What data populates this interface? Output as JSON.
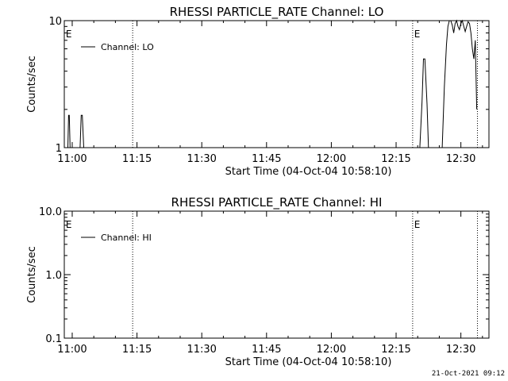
{
  "chart_data": [
    {
      "type": "line",
      "title": "RHESSI PARTICLE_RATE Channel: LO",
      "xlabel": "Start Time (04-Oct-04 10:58:10)",
      "ylabel": "Counts/sec",
      "yscale": "log",
      "ylim": [
        1,
        10
      ],
      "ytick_labels": [
        "1",
        "10"
      ],
      "xlim": [
        "10:58:10",
        "12:36:30"
      ],
      "xtick_labels": [
        "11:00",
        "11:15",
        "11:30",
        "11:45",
        "12:00",
        "12:15",
        "12:30"
      ],
      "legend": {
        "placement": "top-left",
        "label": "Channel: LO"
      },
      "event_lines": [
        "11:14:00",
        "12:18:50",
        "12:33:50"
      ],
      "event_markers": [
        {
          "time": "10:58:30",
          "label": "E"
        },
        {
          "time": "12:19:10",
          "label": "E"
        }
      ],
      "series": [
        {
          "x": [
            "10:59:00",
            "10:59:10",
            "10:59:20",
            "10:59:30",
            "10:59:45",
            "11:01:50",
            "11:02:05",
            "11:02:20",
            "11:02:40",
            "12:20:30",
            "12:21:00",
            "12:21:20",
            "12:21:40",
            "12:22:10",
            "12:22:30",
            "12:25:40",
            "12:26:10",
            "12:26:40",
            "12:27:00",
            "12:27:20",
            "12:27:40",
            "12:28:00",
            "12:28:20",
            "12:28:40",
            "12:29:00",
            "12:29:20",
            "12:29:40",
            "12:30:00",
            "12:30:20",
            "12:30:40",
            "12:31:00",
            "12:31:20",
            "12:31:40",
            "12:32:00",
            "12:32:20",
            "12:32:40",
            "12:33:00",
            "12:33:20",
            "12:33:40"
          ],
          "y": [
            1.0,
            1.8,
            1.8,
            1.0,
            1.0,
            1.0,
            1.8,
            1.8,
            1.0,
            1.0,
            2.3,
            5.0,
            5.0,
            2.2,
            1.0,
            1.0,
            3.0,
            6.5,
            9.0,
            10.0,
            10.0,
            9.2,
            8.0,
            9.5,
            10.0,
            9.0,
            8.5,
            9.5,
            10.0,
            9.0,
            8.2,
            9.0,
            9.8,
            9.5,
            8.0,
            6.0,
            5.0,
            7.0,
            2.0
          ]
        }
      ]
    },
    {
      "type": "line",
      "title": "RHESSI PARTICLE_RATE Channel: HI",
      "xlabel": "Start Time (04-Oct-04 10:58:10)",
      "ylabel": "Counts/sec",
      "yscale": "log",
      "ylim": [
        0.1,
        10
      ],
      "ytick_labels": [
        "0.1",
        "1.0",
        "10.0"
      ],
      "xlim": [
        "10:58:10",
        "12:36:30"
      ],
      "xtick_labels": [
        "11:00",
        "11:15",
        "11:30",
        "11:45",
        "12:00",
        "12:15",
        "12:30"
      ],
      "legend": {
        "placement": "top-left",
        "label": "Channel: HI"
      },
      "event_lines": [
        "11:14:00",
        "12:18:50",
        "12:33:50"
      ],
      "event_markers": [
        {
          "time": "10:58:30",
          "label": "E"
        },
        {
          "time": "12:19:10",
          "label": "E"
        }
      ],
      "series": [
        {
          "x": [],
          "y": []
        }
      ]
    }
  ],
  "footer": {
    "timestamp": "21-Oct-2021 09:12"
  }
}
